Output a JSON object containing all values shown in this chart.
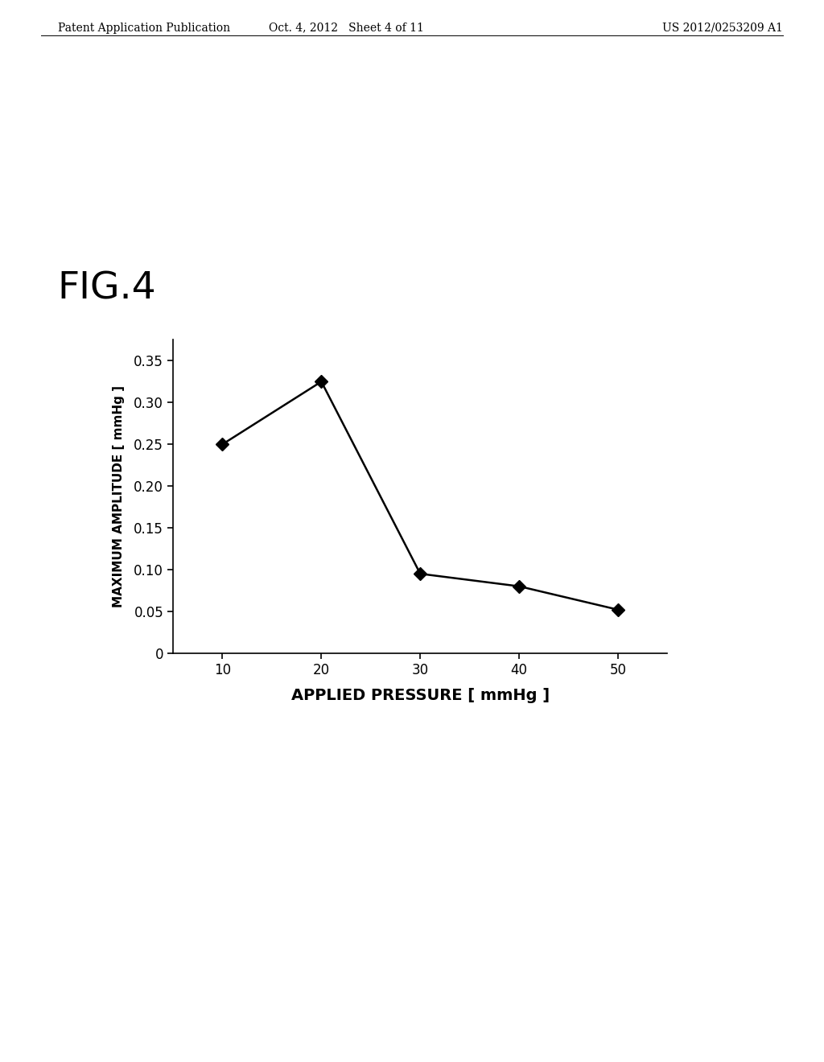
{
  "title": "FIG.4",
  "xlabel": "APPLIED PRESSURE [ mmHg ]",
  "ylabel": "MAXIMUM AMPLITUDE [ mmHg ]",
  "x_data": [
    10,
    20,
    30,
    40,
    50
  ],
  "y_data": [
    0.25,
    0.325,
    0.095,
    0.08,
    0.052
  ],
  "xlim": [
    5,
    55
  ],
  "ylim": [
    0,
    0.375
  ],
  "xticks": [
    10,
    20,
    30,
    40,
    50
  ],
  "yticks": [
    0,
    0.05,
    0.1,
    0.15,
    0.2,
    0.25,
    0.3,
    0.35
  ],
  "ytick_labels": [
    "0",
    "0.05",
    "0.10",
    "0.15",
    "0.20",
    "0.25",
    "0.30",
    "0.35"
  ],
  "line_color": "#000000",
  "marker": "D",
  "marker_color": "#000000",
  "marker_size": 8,
  "line_width": 1.8,
  "bg_color": "#ffffff",
  "header_left": "Patent Application Publication",
  "header_center": "Oct. 4, 2012   Sheet 4 of 11",
  "header_right": "US 2012/0253209 A1",
  "fig4_label": "FIG.4",
  "fig4_fontsize": 34,
  "header_fontsize": 10,
  "xlabel_fontsize": 14,
  "ylabel_fontsize": 11,
  "tick_fontsize": 12
}
